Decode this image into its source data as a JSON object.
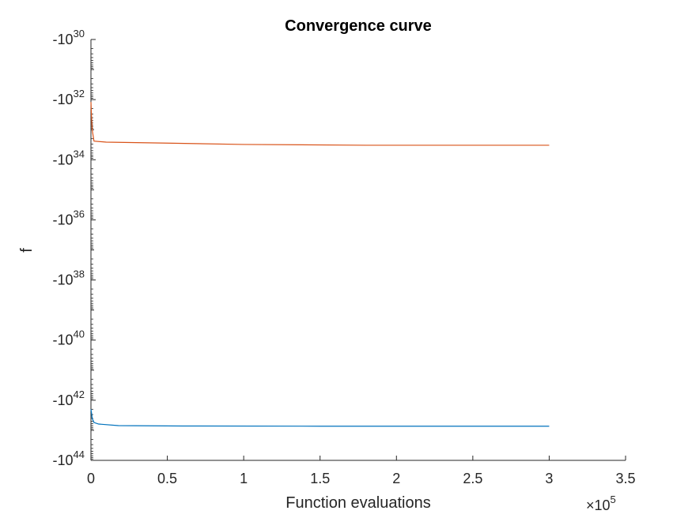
{
  "chart_data": {
    "type": "line",
    "title": "Convergence curve",
    "xlabel": "Function evaluations",
    "ylabel": "f",
    "x_exponent_label": "×10",
    "x_exponent_power": "5",
    "xlim": [
      0,
      350000
    ],
    "x_ticks": [
      {
        "value": 0,
        "label": "0"
      },
      {
        "value": 50000,
        "label": "0.5"
      },
      {
        "value": 100000,
        "label": "1"
      },
      {
        "value": 150000,
        "label": "1.5"
      },
      {
        "value": 200000,
        "label": "2"
      },
      {
        "value": 250000,
        "label": "2.5"
      },
      {
        "value": 300000,
        "label": "3"
      },
      {
        "value": 350000,
        "label": "3.5"
      }
    ],
    "y_scale": "negative-log",
    "y_log10_abs_range": [
      30,
      44
    ],
    "y_ticks": [
      {
        "exp": 30,
        "base": "-10",
        "power": "30"
      },
      {
        "exp": 32,
        "base": "-10",
        "power": "32"
      },
      {
        "exp": 34,
        "base": "-10",
        "power": "34"
      },
      {
        "exp": 36,
        "base": "-10",
        "power": "36"
      },
      {
        "exp": 38,
        "base": "-10",
        "power": "38"
      },
      {
        "exp": 40,
        "base": "-10",
        "power": "40"
      },
      {
        "exp": 42,
        "base": "-10",
        "power": "42"
      },
      {
        "exp": 44,
        "base": "-10",
        "power": "44"
      }
    ],
    "series": [
      {
        "color": "#0072BD",
        "points": [
          [
            0,
            -2e+42
          ],
          [
            300,
            -2.5e+42
          ],
          [
            800,
            -4e+42
          ],
          [
            2000,
            -5.5e+42
          ],
          [
            5000,
            -6.2e+42
          ],
          [
            18000,
            -7e+42
          ],
          [
            60000,
            -7.2e+42
          ],
          [
            150000,
            -7.3e+42
          ],
          [
            300000,
            -7.3e+42
          ]
        ]
      },
      {
        "color": "#D95319",
        "points": [
          [
            0,
            -1.2e+32
          ],
          [
            300,
            -3e+32
          ],
          [
            800,
            -1e+33
          ],
          [
            2000,
            -2.4e+33
          ],
          [
            10000,
            -2.6e+33
          ],
          [
            50000,
            -2.8e+33
          ],
          [
            100000,
            -3.1e+33
          ],
          [
            180000,
            -3.3e+33
          ],
          [
            300000,
            -3.3e+33
          ]
        ]
      }
    ]
  }
}
